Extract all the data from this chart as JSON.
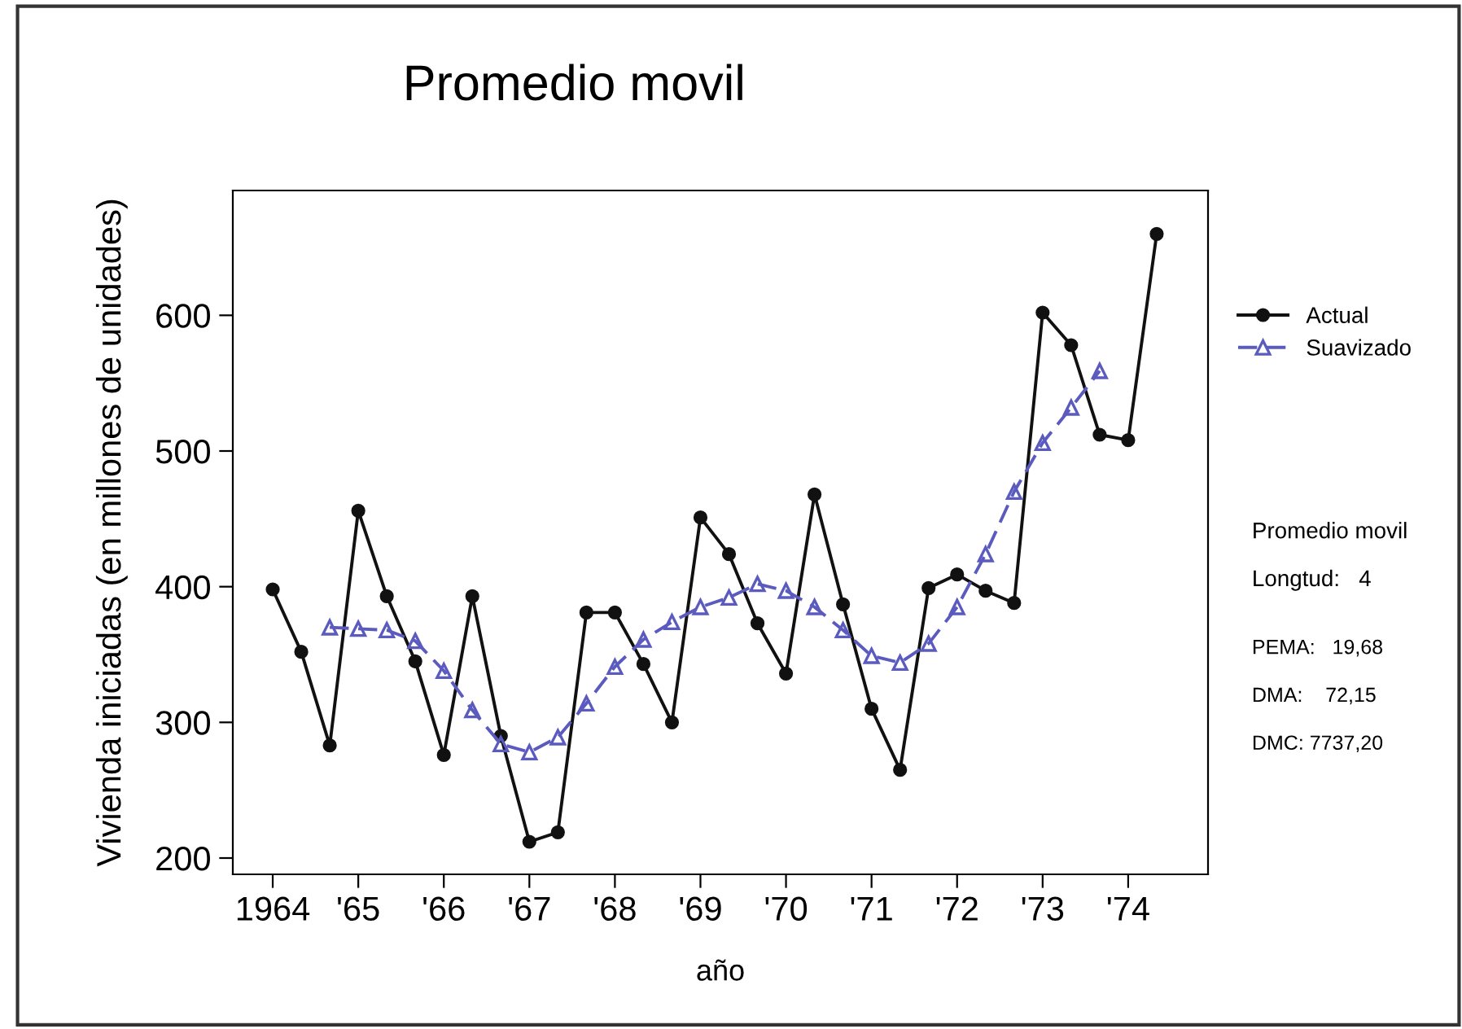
{
  "chart_data": {
    "type": "line",
    "title": "Promedio movil",
    "xlabel": "año",
    "ylabel": "Vivienda iniciadas (en millones de unidades)",
    "categories": [
      "1964",
      null,
      null,
      "'65",
      null,
      null,
      "'66",
      null,
      null,
      "'67",
      null,
      null,
      "'68",
      null,
      null,
      "'69",
      null,
      null,
      "'70",
      null,
      null,
      "'71",
      null,
      null,
      "'72",
      null,
      null,
      "'73",
      null,
      null,
      "'74",
      null
    ],
    "series": [
      {
        "name": "Actual",
        "color": "#111111",
        "marker": "circle",
        "line_style": "solid",
        "values": [
          398,
          352,
          283,
          456,
          393,
          345,
          276,
          393,
          290,
          212,
          219,
          381,
          381,
          343,
          300,
          451,
          424,
          373,
          336,
          468,
          387,
          310,
          265,
          399,
          409,
          397,
          388,
          602,
          578,
          512,
          508,
          660
        ]
      },
      {
        "name": "Suavizado",
        "color": "#5b5bbf",
        "marker": "triangle",
        "line_style": "dashed",
        "values": [
          null,
          null,
          370,
          369,
          368,
          360,
          338,
          309,
          284,
          278,
          289,
          314,
          341,
          361,
          374,
          385,
          392,
          402,
          397,
          385,
          368,
          349,
          344,
          358,
          385,
          424,
          470,
          506,
          532,
          559,
          null,
          null
        ]
      }
    ],
    "ylim": [
      188,
      692
    ],
    "yticks": [
      200,
      300,
      400,
      500,
      600
    ],
    "grid": false,
    "legend": "right",
    "annotations": [
      "Promedio movil",
      "Longtud:   4",
      "PEMA:   19,68",
      "DMA:    72,15",
      "DMC: 7737,20"
    ]
  }
}
